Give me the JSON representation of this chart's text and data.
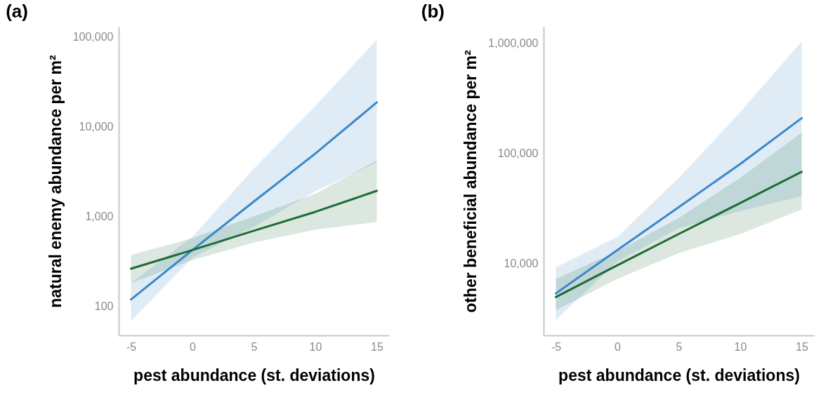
{
  "chart_data": [
    {
      "type": "line",
      "title": "(a)",
      "xlabel": "pest abundance (st. deviations)",
      "ylabel": "natural enemy abundance per m²",
      "log": "y",
      "x": [
        -5,
        0,
        5,
        10,
        15
      ],
      "xlim": [
        -6,
        16
      ],
      "xticks": [
        -5,
        0,
        5,
        10,
        15
      ],
      "ylim": [
        47,
        130000
      ],
      "yticks": [
        100,
        {
          "value": 1000,
          "label": "1,000"
        },
        {
          "value": 10000,
          "label": "10,000"
        },
        {
          "value": 100000,
          "label": "100,000"
        }
      ],
      "series": [
        {
          "color": "#3a87c8",
          "values": [
            118,
            420,
            1460,
            5000,
            18600
          ],
          "lower": [
            68,
            345,
            760,
            1900,
            4000
          ],
          "upper": [
            180,
            590,
            3400,
            17000,
            93000
          ]
        },
        {
          "color": "#1f6b35",
          "values": [
            260,
            420,
            690,
            1120,
            1920
          ],
          "lower": [
            180,
            325,
            510,
            710,
            860
          ],
          "upper": [
            370,
            570,
            1000,
            1780,
            4200
          ]
        }
      ]
    },
    {
      "type": "line",
      "title": "(b)",
      "xlabel": "pest abundance (st. deviations)",
      "ylabel": "other beneficial abundance per m²",
      "log": "y",
      "x": [
        -5,
        0,
        5,
        10,
        15
      ],
      "xlim": [
        -6,
        16
      ],
      "xticks": [
        -5,
        0,
        5,
        10,
        15
      ],
      "ylim": [
        2250,
        1400000
      ],
      "yticks": [
        {
          "value": 10000,
          "label": "10,000"
        },
        {
          "value": 100000,
          "label": "100,000"
        },
        {
          "value": 1000000,
          "label": "1,000,000"
        }
      ],
      "series": [
        {
          "color": "#3a87c8",
          "values": [
            5400,
            13300,
            32600,
            80000,
            208000
          ],
          "lower": [
            3100,
            10500,
            21000,
            30000,
            41000
          ],
          "upper": [
            9300,
            17500,
            60000,
            235000,
            1030000
          ]
        },
        {
          "color": "#1f6b35",
          "values": [
            5000,
            9700,
            18600,
            35500,
            68000
          ],
          "lower": [
            3800,
            7300,
            12500,
            18600,
            31000
          ],
          "upper": [
            7300,
            13000,
            26000,
            60000,
            154000
          ]
        }
      ]
    }
  ]
}
